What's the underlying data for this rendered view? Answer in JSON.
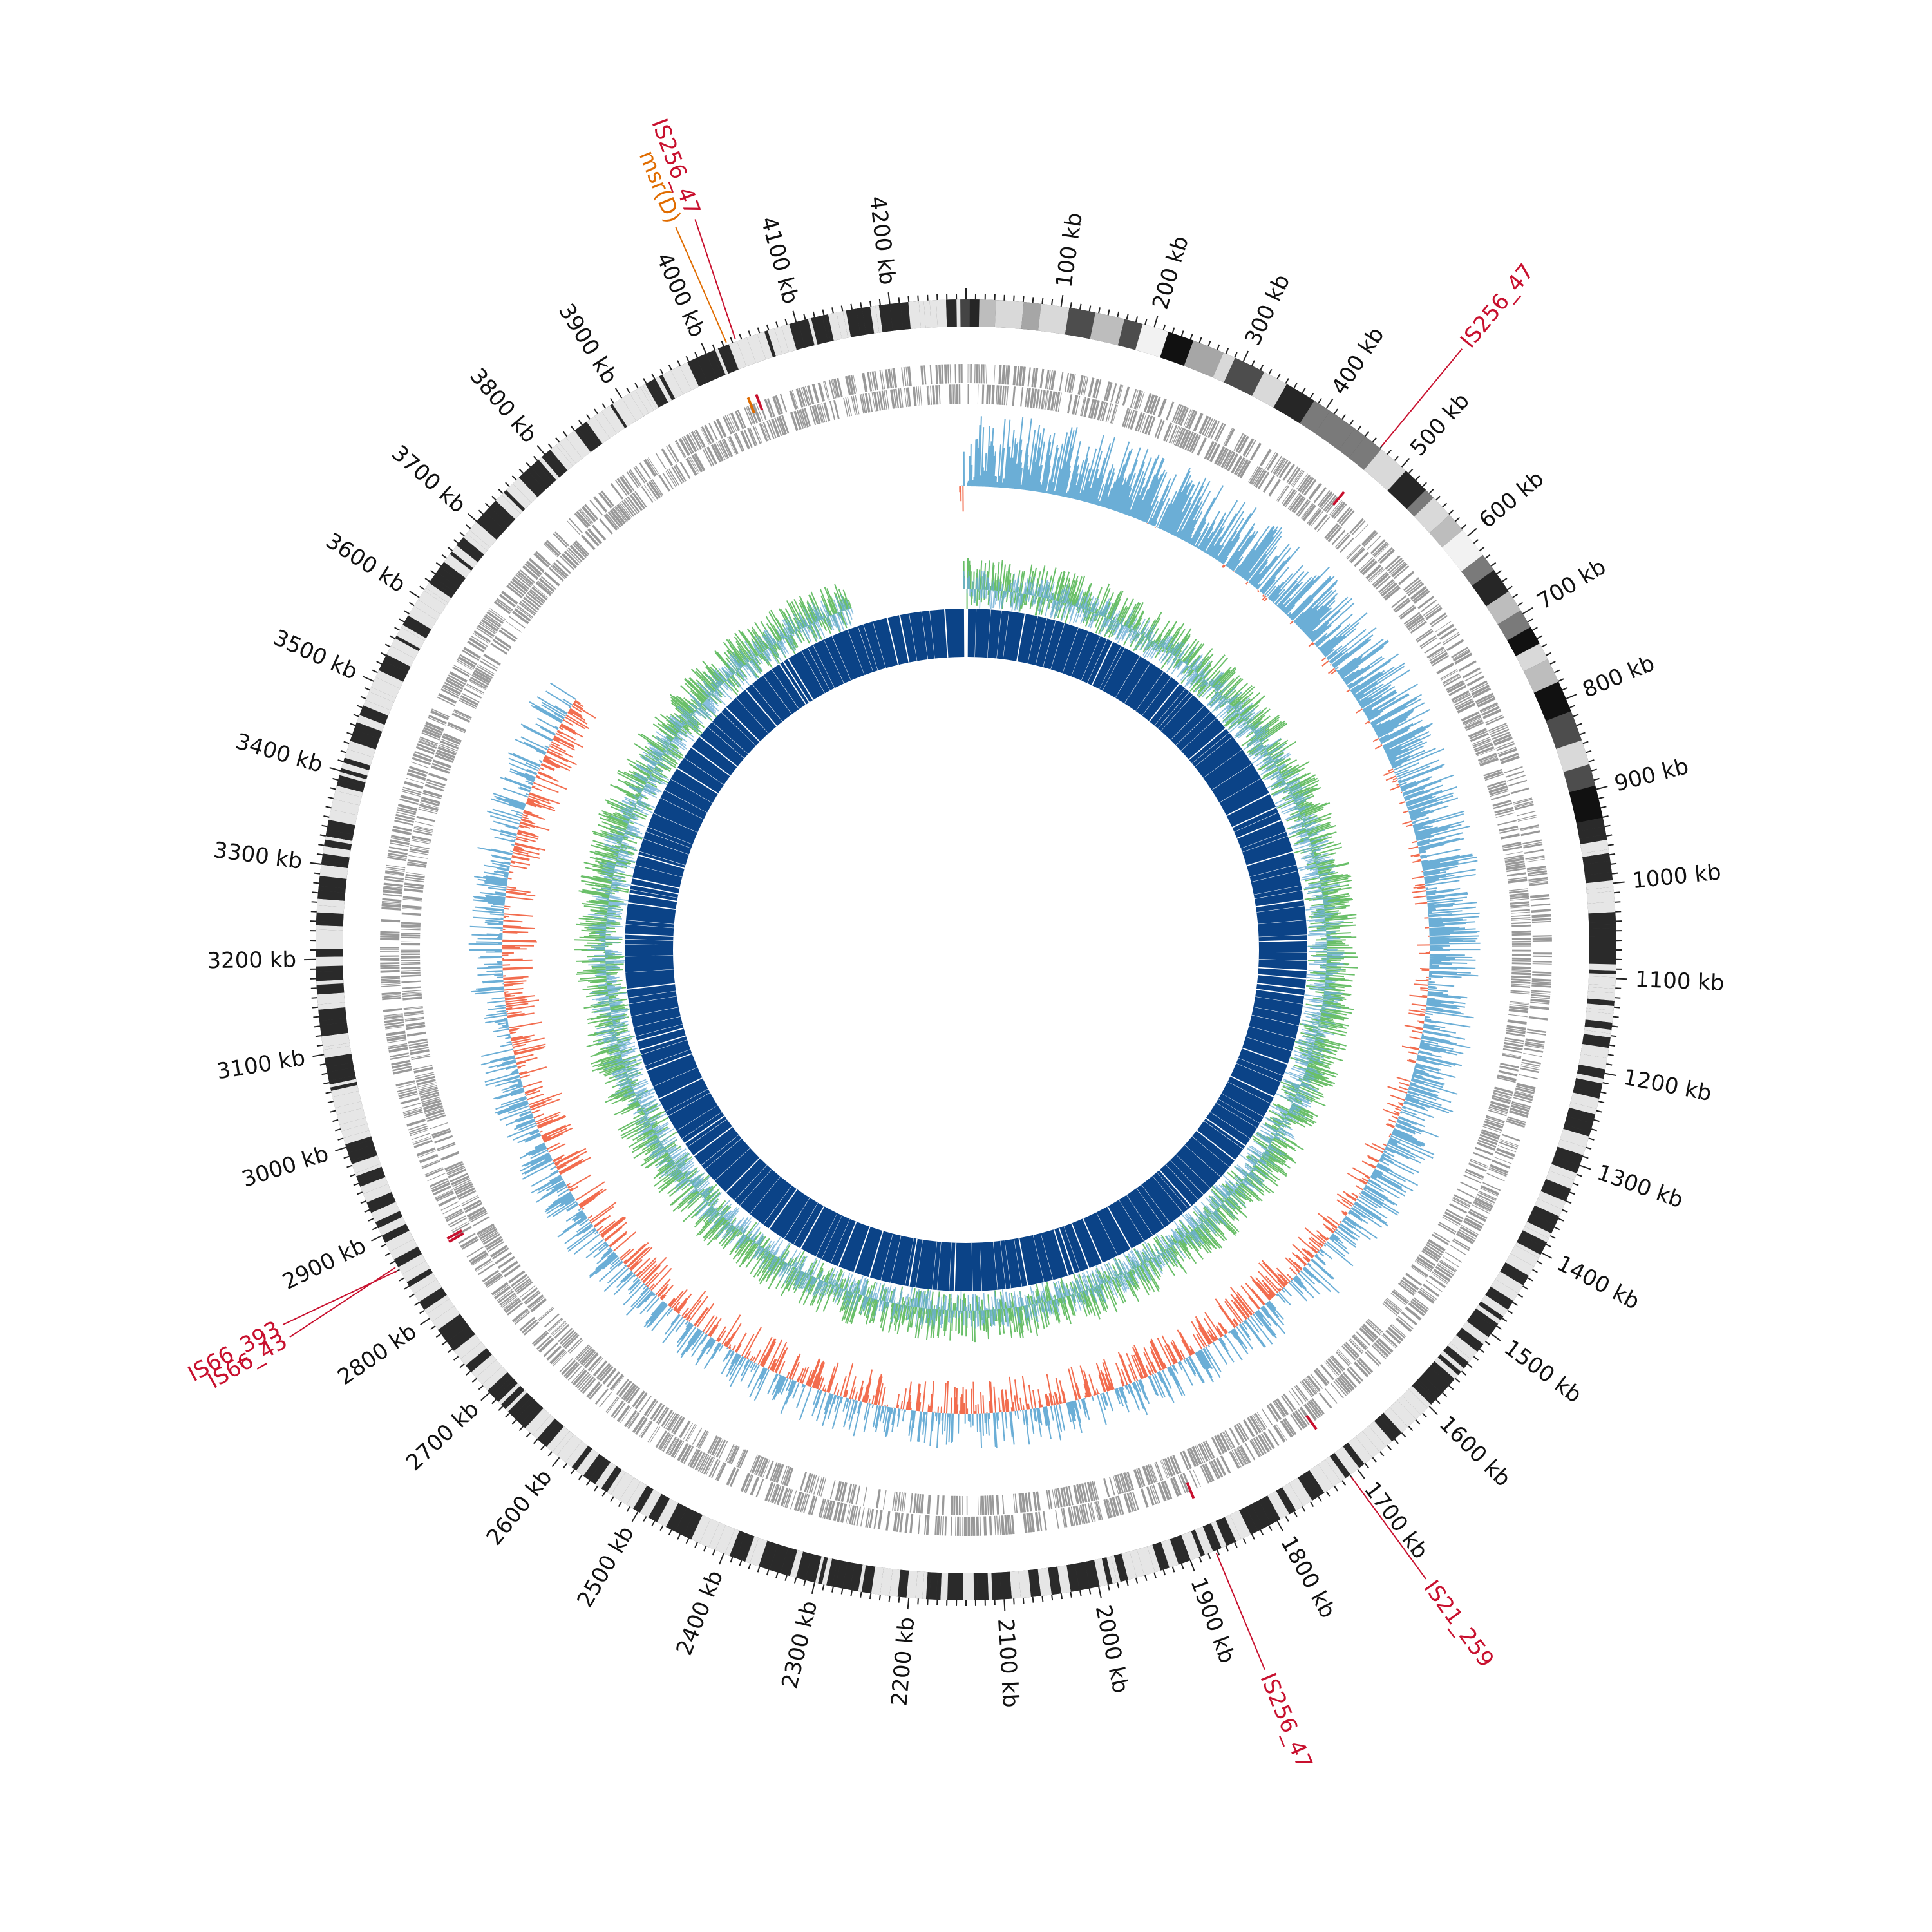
{
  "genome": {
    "length_kb": 4280,
    "colors": {
      "label_dark": "#111111",
      "is_element": "#c8102e",
      "resistance_gene": "#e06c00",
      "cds_track": "#999999",
      "skew_positive": "#6baed6",
      "skew_negative": "#f26d4f",
      "gc_track": "#6abf69",
      "homology": "#0b4387",
      "contig_light": "#e8e8e8",
      "contig_dark": "#111111"
    }
  },
  "ticks": [
    {
      "kb": 100,
      "label": "100 kb"
    },
    {
      "kb": 200,
      "label": "200 kb"
    },
    {
      "kb": 300,
      "label": "300 kb"
    },
    {
      "kb": 400,
      "label": "400 kb"
    },
    {
      "kb": 500,
      "label": "500 kb"
    },
    {
      "kb": 600,
      "label": "600 kb"
    },
    {
      "kb": 700,
      "label": "700 kb"
    },
    {
      "kb": 800,
      "label": "800 kb"
    },
    {
      "kb": 900,
      "label": "900 kb"
    },
    {
      "kb": 1000,
      "label": "1000 kb"
    },
    {
      "kb": 1100,
      "label": "1100 kb"
    },
    {
      "kb": 1200,
      "label": "1200 kb"
    },
    {
      "kb": 1300,
      "label": "1300 kb"
    },
    {
      "kb": 1400,
      "label": "1400 kb"
    },
    {
      "kb": 1500,
      "label": "1500 kb"
    },
    {
      "kb": 1600,
      "label": "1600 kb"
    },
    {
      "kb": 1700,
      "label": "1700 kb"
    },
    {
      "kb": 1800,
      "label": "1800 kb"
    },
    {
      "kb": 1900,
      "label": "1900 kb"
    },
    {
      "kb": 2000,
      "label": "2000 kb"
    },
    {
      "kb": 2100,
      "label": "2100 kb"
    },
    {
      "kb": 2200,
      "label": "2200 kb"
    },
    {
      "kb": 2300,
      "label": "2300 kb"
    },
    {
      "kb": 2400,
      "label": "2400 kb"
    },
    {
      "kb": 2500,
      "label": "2500 kb"
    },
    {
      "kb": 2600,
      "label": "2600 kb"
    },
    {
      "kb": 2700,
      "label": "2700 kb"
    },
    {
      "kb": 2800,
      "label": "2800 kb"
    },
    {
      "kb": 2900,
      "label": "2900 kb"
    },
    {
      "kb": 3000,
      "label": "3000 kb"
    },
    {
      "kb": 3100,
      "label": "3100 kb"
    },
    {
      "kb": 3200,
      "label": "3200 kb"
    },
    {
      "kb": 3300,
      "label": "3300 kb"
    },
    {
      "kb": 3400,
      "label": "3400 kb"
    },
    {
      "kb": 3500,
      "label": "3500 kb"
    },
    {
      "kb": 3600,
      "label": "3600 kb"
    },
    {
      "kb": 3700,
      "label": "3700 kb"
    },
    {
      "kb": 3800,
      "label": "3800 kb"
    },
    {
      "kb": 3900,
      "label": "3900 kb"
    },
    {
      "kb": 4000,
      "label": "4000 kb"
    },
    {
      "kb": 4100,
      "label": "4100 kb"
    },
    {
      "kb": 4200,
      "label": "4200 kb"
    }
  ],
  "annotations": [
    {
      "label": "IS256_47",
      "kb": 4034,
      "type": "is_element"
    },
    {
      "label": "msr(D)",
      "kb": 4024,
      "type": "resistance_gene"
    },
    {
      "label": "IS256_47",
      "kb": 470,
      "type": "is_element"
    },
    {
      "label": "IS21_259",
      "kb": 1710,
      "type": "is_element"
    },
    {
      "label": "IS256_47",
      "kb": 1872,
      "type": "is_element"
    },
    {
      "label": "IS66_43",
      "kb": 2864,
      "type": "is_element"
    },
    {
      "label": "IS66_393",
      "kb": 2860,
      "type": "is_element"
    }
  ]
}
